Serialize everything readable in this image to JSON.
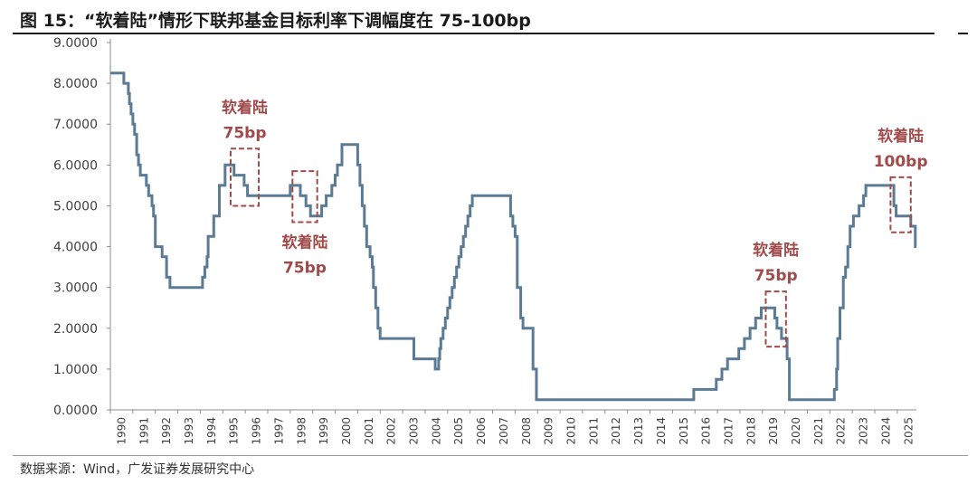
{
  "title": "图 15：“软着陆”情形下联邦基金目标利率下调幅度在 75-100bp",
  "source": "数据来源：Wind，广发证券发展研究中心",
  "colors": {
    "line": "#5B7A94",
    "annotation": "#A04A4A",
    "axis": "#8C8C8C",
    "text": "#404040"
  },
  "chart_data": {
    "type": "line",
    "title": "“软着陆”情形下联邦基金目标利率下调幅度在 75-100bp",
    "xlabel": "",
    "ylabel": "",
    "xlim": [
      1990,
      2025.85
    ],
    "ylim": [
      0,
      9
    ],
    "y_ticks": [
      "0.0000",
      "1.0000",
      "2.0000",
      "3.0000",
      "4.0000",
      "5.0000",
      "6.0000",
      "7.0000",
      "8.0000",
      "9.0000"
    ],
    "x_ticks": [
      "1990",
      "1991",
      "1992",
      "1993",
      "1994",
      "1995",
      "1996",
      "1997",
      "1998",
      "1999",
      "2000",
      "2001",
      "2002",
      "2003",
      "2004",
      "2005",
      "2006",
      "2007",
      "2008",
      "2009",
      "2010",
      "2011",
      "2012",
      "2013",
      "2014",
      "2015",
      "2016",
      "2017",
      "2018",
      "2019",
      "2020",
      "2021",
      "2022",
      "2023",
      "2024",
      "2025"
    ],
    "grid": false,
    "series": [
      {
        "name": "联邦基金目标利率",
        "x": [
          1990.0,
          1990.6,
          1990.8,
          1990.85,
          1990.92,
          1991.0,
          1991.08,
          1991.17,
          1991.25,
          1991.33,
          1991.6,
          1991.7,
          1991.85,
          1991.92,
          1992.0,
          1992.3,
          1992.5,
          1992.65,
          1993.0,
          1994.1,
          1994.2,
          1994.3,
          1994.35,
          1994.6,
          1994.85,
          1995.1,
          1995.5,
          1995.95,
          1996.1,
          1996.4,
          1998.0,
          1998.2,
          1998.45,
          1998.7,
          1998.9,
          1999.4,
          1999.6,
          1999.85,
          2000.0,
          2000.1,
          2000.3,
          2000.5,
          2001.0,
          2001.1,
          2001.2,
          2001.3,
          2001.4,
          2001.55,
          2001.65,
          2001.7,
          2001.8,
          2001.9,
          2002.0,
          2002.8,
          2003.5,
          2004.45,
          2004.6,
          2004.65,
          2004.7,
          2004.8,
          2004.9,
          2005.0,
          2005.1,
          2005.2,
          2005.3,
          2005.4,
          2005.5,
          2005.6,
          2005.7,
          2005.8,
          2005.9,
          2006.0,
          2006.1,
          2006.2,
          2006.3,
          2006.4,
          2006.5,
          2007.7,
          2007.8,
          2007.9,
          2008.0,
          2008.1,
          2008.25,
          2008.35,
          2008.8,
          2008.95,
          2015.95,
          2016.95,
          2017.2,
          2017.45,
          2017.95,
          2018.2,
          2018.45,
          2018.7,
          2018.95,
          2019.55,
          2019.65,
          2019.85,
          2020.1,
          2020.2,
          2022.2,
          2022.3,
          2022.35,
          2022.45,
          2022.6,
          2022.7,
          2022.8,
          2022.9,
          2023.05,
          2023.3,
          2023.5,
          2023.6,
          2024.7,
          2024.85,
          2024.95,
          2025.6,
          2025.8
        ],
        "values": [
          8.25,
          8.0,
          7.75,
          7.5,
          7.25,
          7.0,
          6.75,
          6.25,
          6.0,
          5.75,
          5.5,
          5.25,
          5.0,
          4.75,
          4.0,
          3.75,
          3.25,
          3.0,
          3.0,
          3.25,
          3.5,
          3.75,
          4.25,
          4.75,
          5.5,
          6.0,
          5.75,
          5.5,
          5.25,
          5.25,
          5.5,
          5.5,
          5.25,
          5.0,
          4.75,
          5.0,
          5.25,
          5.5,
          5.75,
          6.0,
          6.5,
          6.5,
          6.0,
          5.5,
          5.0,
          4.5,
          4.0,
          3.75,
          3.5,
          3.0,
          2.5,
          2.0,
          1.75,
          1.75,
          1.25,
          1.0,
          1.25,
          1.5,
          1.75,
          2.0,
          2.25,
          2.5,
          2.75,
          3.0,
          3.25,
          3.5,
          3.75,
          4.0,
          4.25,
          4.5,
          4.75,
          5.0,
          5.25,
          5.25,
          5.25,
          5.25,
          5.25,
          5.25,
          4.75,
          4.5,
          4.25,
          3.0,
          2.25,
          2.0,
          1.0,
          0.25,
          0.5,
          0.75,
          1.0,
          1.25,
          1.5,
          1.75,
          2.0,
          2.25,
          2.5,
          2.25,
          2.0,
          1.75,
          1.25,
          0.25,
          0.5,
          1.0,
          1.75,
          2.5,
          3.25,
          3.5,
          4.0,
          4.5,
          4.75,
          5.0,
          5.25,
          5.5,
          5.5,
          5.0,
          4.75,
          4.5,
          4.0
        ]
      }
    ],
    "annotations": [
      {
        "label": "软着陆",
        "sublabel": "75bp",
        "box_x": [
          1995.35,
          1996.6
        ],
        "box_y": [
          5.0,
          6.4
        ],
        "label_position": "above-box"
      },
      {
        "label": "软着陆",
        "sublabel": "75bp",
        "box_x": [
          1998.1,
          1999.2
        ],
        "box_y": [
          4.6,
          5.85
        ],
        "label_position": "below-box"
      },
      {
        "label": "软着陆",
        "sublabel": "75bp",
        "box_x": [
          2019.15,
          2020.05
        ],
        "box_y": [
          1.55,
          2.9
        ],
        "label_position": "above-box"
      },
      {
        "label": "软着陆",
        "sublabel": "100bp",
        "box_x": [
          2024.7,
          2025.6
        ],
        "box_y": [
          4.35,
          5.7
        ],
        "label_position": "above-box"
      }
    ]
  }
}
